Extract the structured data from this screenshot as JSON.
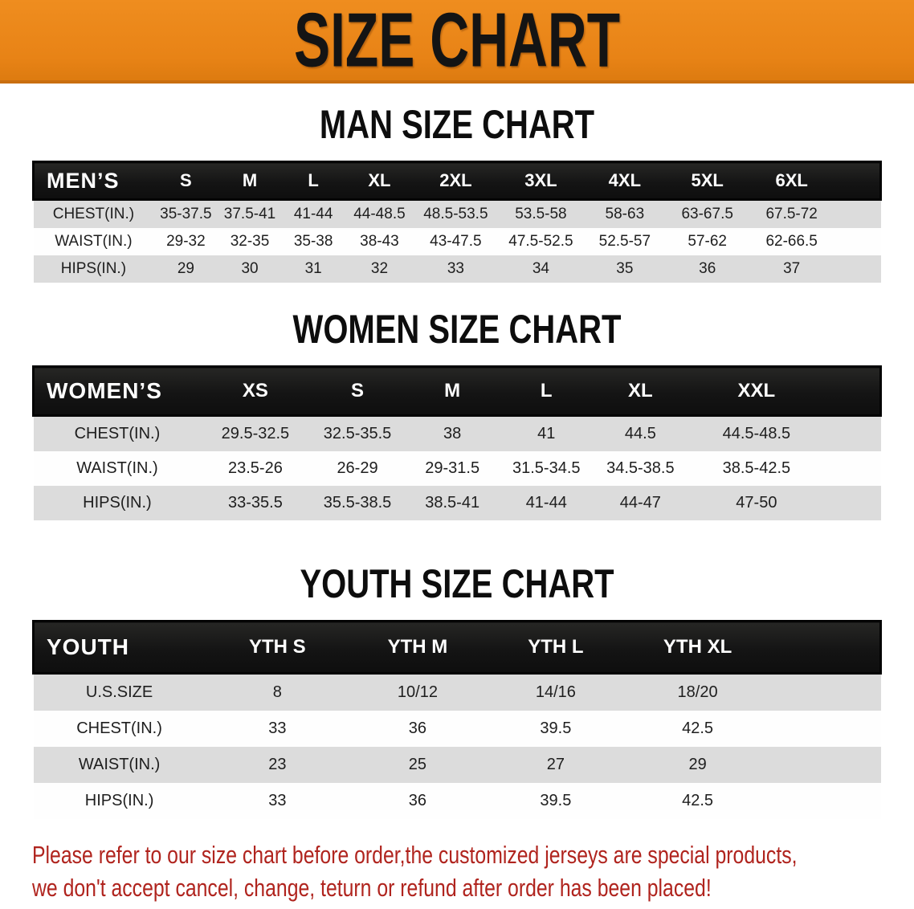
{
  "banner": {
    "title": "SIZE CHART"
  },
  "sections": [
    {
      "heading": "MAN SIZE CHART",
      "header_label": "MEN’S",
      "columns": [
        "S",
        "M",
        "L",
        "XL",
        "2XL",
        "3XL",
        "4XL",
        "5XL",
        "6XL"
      ],
      "rows": [
        {
          "label": "CHEST(IN.)",
          "values": [
            "35-37.5",
            "37.5-41",
            "41-44",
            "44-48.5",
            "48.5-53.5",
            "53.5-58",
            "58-63",
            "63-67.5",
            "67.5-72"
          ]
        },
        {
          "label": "WAIST(IN.)",
          "values": [
            "29-32",
            "32-35",
            "35-38",
            "38-43",
            "43-47.5",
            "47.5-52.5",
            "52.5-57",
            "57-62",
            "62-66.5"
          ]
        },
        {
          "label": "HIPS(IN.)",
          "values": [
            "29",
            "30",
            "31",
            "32",
            "33",
            "34",
            "35",
            "36",
            "37"
          ]
        }
      ]
    },
    {
      "heading": "WOMEN SIZE CHART",
      "header_label": "WOMEN’S",
      "columns": [
        "XS",
        "S",
        "M",
        "L",
        "XL",
        "XXL"
      ],
      "rows": [
        {
          "label": "CHEST(IN.)",
          "values": [
            "29.5-32.5",
            "32.5-35.5",
            "38",
            "41",
            "44.5",
            "44.5-48.5"
          ]
        },
        {
          "label": "WAIST(IN.)",
          "values": [
            "23.5-26",
            "26-29",
            "29-31.5",
            "31.5-34.5",
            "34.5-38.5",
            "38.5-42.5"
          ]
        },
        {
          "label": "HIPS(IN.)",
          "values": [
            "33-35.5",
            "35.5-38.5",
            "38.5-41",
            "41-44",
            "44-47",
            "47-50"
          ]
        }
      ]
    },
    {
      "heading": "YOUTH SIZE CHART",
      "header_label": "YOUTH",
      "columns": [
        "YTH S",
        "YTH M",
        "YTH L",
        "YTH XL"
      ],
      "rows": [
        {
          "label": "U.S.SIZE",
          "values": [
            "8",
            "10/12",
            "14/16",
            "18/20"
          ]
        },
        {
          "label": "CHEST(IN.)",
          "values": [
            "33",
            "36",
            "39.5",
            "42.5"
          ]
        },
        {
          "label": "WAIST(IN.)",
          "values": [
            "23",
            "25",
            "27",
            "29"
          ]
        },
        {
          "label": "HIPS(IN.)",
          "values": [
            "33",
            "36",
            "39.5",
            "42.5"
          ]
        }
      ]
    }
  ],
  "footer": {
    "line1": "Please refer to our size chart before order,the customized jerseys are special products,",
    "line2": "we don't accept cancel, change, teturn or refund after order has been placed!"
  },
  "colors": {
    "banner_orange": "#E88316",
    "header_black": "#141414",
    "row_gray": "#DCDCDC",
    "footer_red": "#B0241E"
  }
}
